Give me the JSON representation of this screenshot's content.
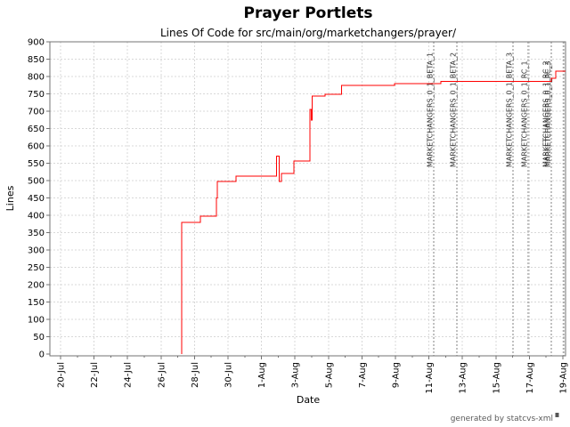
{
  "page": {
    "title": "Prayer Portlets",
    "subtitle": "Lines Of Code for src/main/org/marketchangers/prayer/",
    "footer": "generated by statcvs-xml",
    "footer_icon": "statcvs-badge"
  },
  "chart_data": {
    "type": "line",
    "style": "step",
    "title": "Prayer Portlets",
    "subtitle": "Lines Of Code for src/main/org/marketchangers/prayer/",
    "xlabel": "Date",
    "ylabel": "Lines",
    "ylim": [
      0,
      900
    ],
    "ytick_step": 50,
    "y_ticks": [
      0,
      50,
      100,
      150,
      200,
      250,
      300,
      350,
      400,
      450,
      500,
      550,
      600,
      650,
      700,
      750,
      800,
      850,
      900
    ],
    "x_ticks": [
      "20-Jul",
      "22-Jul",
      "24-Jul",
      "26-Jul",
      "28-Jul",
      "30-Jul",
      "1-Aug",
      "3-Aug",
      "5-Aug",
      "7-Aug",
      "9-Aug",
      "11-Aug",
      "13-Aug",
      "15-Aug",
      "17-Aug",
      "19-Aug"
    ],
    "x_tick_interval_days": 2,
    "x_unit": "days since 20-Jul",
    "grid": true,
    "legend_position": "none",
    "line_color": "#ff0000",
    "grid_color": "#d8d8d8",
    "border_color": "#737373",
    "tag_line_color": "#808080",
    "series": [
      {
        "name": "Lines Of Code",
        "color": "#ff0000",
        "points": [
          [
            7.23,
            0
          ],
          [
            7.23,
            380
          ],
          [
            8.35,
            380
          ],
          [
            8.35,
            397
          ],
          [
            9.31,
            397
          ],
          [
            9.31,
            450
          ],
          [
            9.37,
            450
          ],
          [
            9.37,
            497
          ],
          [
            10.48,
            497
          ],
          [
            10.48,
            513
          ],
          [
            12.9,
            513
          ],
          [
            12.9,
            570
          ],
          [
            13.05,
            570
          ],
          [
            13.05,
            497
          ],
          [
            13.2,
            497
          ],
          [
            13.2,
            520
          ],
          [
            13.94,
            520
          ],
          [
            13.94,
            557
          ],
          [
            14.9,
            557
          ],
          [
            14.9,
            705
          ],
          [
            14.97,
            705
          ],
          [
            14.97,
            675
          ],
          [
            15.03,
            675
          ],
          [
            15.03,
            744
          ],
          [
            15.8,
            744
          ],
          [
            15.8,
            749
          ],
          [
            16.77,
            749
          ],
          [
            16.77,
            775
          ],
          [
            19.95,
            775
          ],
          [
            19.95,
            780
          ],
          [
            22.7,
            780
          ],
          [
            22.7,
            786
          ],
          [
            29.31,
            786
          ],
          [
            29.31,
            795
          ],
          [
            29.57,
            795
          ],
          [
            29.57,
            815
          ],
          [
            30.16,
            815
          ]
        ]
      }
    ],
    "tags": [
      {
        "label": "MARKETCHANGERS_0_1_BETA_1",
        "day": 22.29
      },
      {
        "label": "MARKETCHANGERS_0_1_BETA_2",
        "day": 23.67
      },
      {
        "label": "MARKETCHANGERS_0_1_BETA_3",
        "day": 27.02
      },
      {
        "label": "MARKETCHANGERS_0_1_RC_1",
        "day": 27.93
      },
      {
        "label": "MARKETCHANGERS_0_1_RC_2",
        "day": 29.31,
        "label_day": 29.2
      },
      {
        "label": "MARKETCHANGERS_0_1_RC_3",
        "day": 30.05,
        "label_day": 29.33
      }
    ]
  }
}
